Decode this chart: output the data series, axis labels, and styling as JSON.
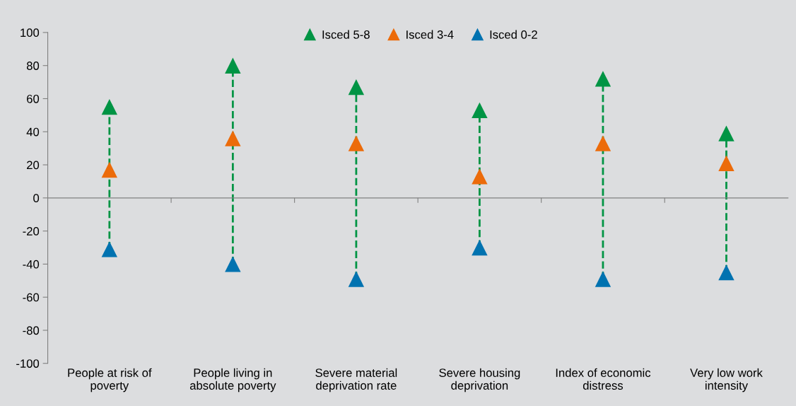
{
  "chart_data": {
    "type": "scatter",
    "categories": [
      "People at risk of\npoverty",
      "People living in\nabsolute poverty",
      "Severe material\ndeprivation rate",
      "Severe housing\ndeprivation",
      "Index of economic\ndistress",
      "Very low work\nintensity"
    ],
    "series": [
      {
        "name": "Isced 5-8",
        "color": "#009444",
        "values": [
          55,
          80,
          67,
          53,
          72,
          39
        ]
      },
      {
        "name": "Isced 3-4",
        "color": "#ec6b0a",
        "values": [
          17,
          36,
          33,
          13,
          33,
          21
        ]
      },
      {
        "name": "Isced 0-2",
        "color": "#0072b0",
        "values": [
          -31,
          -40,
          -49,
          -30,
          -49,
          -45
        ]
      }
    ],
    "ylim": [
      -100,
      100
    ],
    "yticks": [
      -100,
      -80,
      -60,
      -40,
      -20,
      0,
      20,
      40,
      60,
      80,
      100
    ],
    "marker": "triangle",
    "line_style": "dashed",
    "legend": "top"
  }
}
